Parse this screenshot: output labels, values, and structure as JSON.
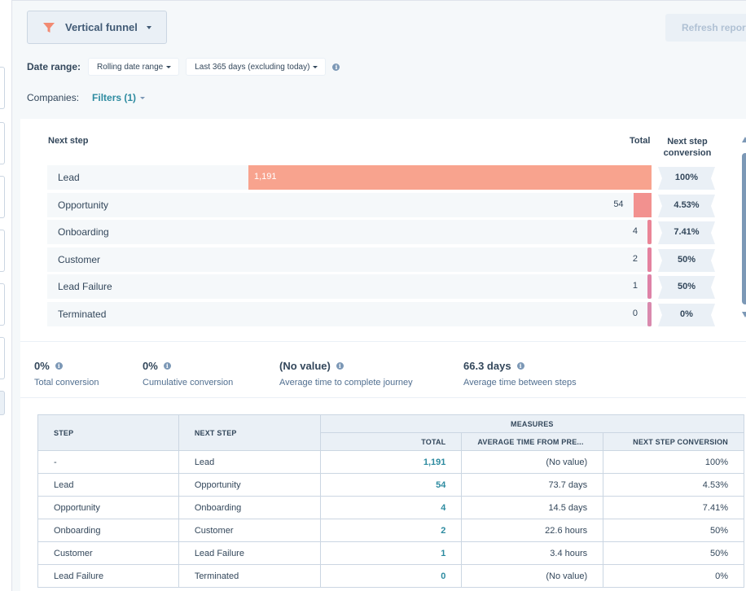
{
  "toolbar": {
    "viz_label": "Vertical funnel",
    "refresh_label": "Refresh report"
  },
  "date_range": {
    "label": "Date range:",
    "type_value": "Rolling date range",
    "range_value": "Last 365 days (excluding today)"
  },
  "companies": {
    "label": "Companies:",
    "filters": "Filters (1)"
  },
  "chart": {
    "header_step": "Next step",
    "header_total": "Total",
    "header_conv_line1": "Next step",
    "header_conv_line2": "conversion"
  },
  "chart_data": {
    "type": "bar",
    "orientation": "horizontal",
    "categories": [
      "Lead",
      "Opportunity",
      "Onboarding",
      "Customer",
      "Lead Failure",
      "Terminated"
    ],
    "values": [
      1191,
      54,
      4,
      2,
      1,
      0
    ],
    "value_labels": [
      "1,191",
      "54",
      "4",
      "2",
      "1",
      "0"
    ],
    "conversion": [
      "100%",
      "4.53%",
      "7.41%",
      "50%",
      "50%",
      "0%"
    ],
    "colors": [
      "#f8a38e",
      "#f2918f",
      "#ea8597",
      "#e4829f",
      "#de82a7",
      "#d98aae"
    ]
  },
  "summary": [
    {
      "value": "0%",
      "label": "Total conversion"
    },
    {
      "value": "0%",
      "label": "Cumulative conversion"
    },
    {
      "value": "(No value)",
      "label": "Average time to complete journey"
    },
    {
      "value": "66.3 days",
      "label": "Average time between steps"
    }
  ],
  "table": {
    "h_step": "STEP",
    "h_next": "NEXT STEP",
    "h_measures": "MEASURES",
    "h_total": "TOTAL",
    "h_avg": "AVERAGE TIME FROM PRE...",
    "h_conv": "NEXT STEP CONVERSION",
    "rows": [
      {
        "step": "-",
        "next": "Lead",
        "total": "1,191",
        "avg": "(No value)",
        "conv": "100%"
      },
      {
        "step": "Lead",
        "next": "Opportunity",
        "total": "54",
        "avg": "73.7 days",
        "conv": "4.53%"
      },
      {
        "step": "Opportunity",
        "next": "Onboarding",
        "total": "4",
        "avg": "14.5 days",
        "conv": "7.41%"
      },
      {
        "step": "Onboarding",
        "next": "Customer",
        "total": "2",
        "avg": "22.6 hours",
        "conv": "50%"
      },
      {
        "step": "Customer",
        "next": "Lead Failure",
        "total": "1",
        "avg": "3.4 hours",
        "conv": "50%"
      },
      {
        "step": "Lead Failure",
        "next": "Terminated",
        "total": "0",
        "avg": "(No value)",
        "conv": "0%"
      }
    ]
  }
}
